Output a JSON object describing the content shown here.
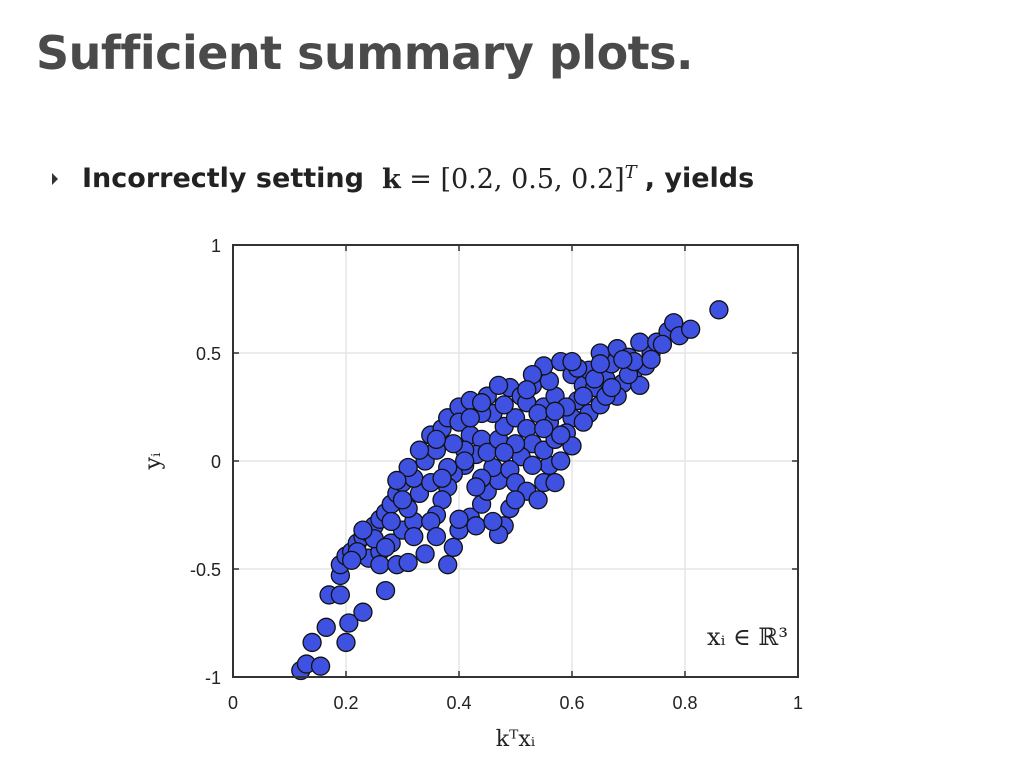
{
  "slide": {
    "title": "Sufficient summary plots.",
    "bullet": {
      "prefix": "Incorrectly setting",
      "math_bold": "k",
      "math_rest": " = [0.2, 0.5, 0.2]",
      "math_sup": "T",
      "suffix": ", yields"
    }
  },
  "colors": {
    "marker_fill": "#3f51e0",
    "marker_edge": "#111111",
    "grid": "#e6e6e6",
    "axes": "#333333"
  },
  "chart_data": {
    "type": "scatter",
    "xlabel": "kᵀxᵢ",
    "ylabel": "yᵢ",
    "annotation": "xᵢ ∈ ℝ³",
    "xlim": [
      0,
      1
    ],
    "ylim": [
      -1,
      1
    ],
    "xticks": [
      0,
      0.2,
      0.4,
      0.6,
      0.8,
      1
    ],
    "xtick_labels": [
      "0",
      "0.2",
      "0.4",
      "0.6",
      "0.8",
      "1"
    ],
    "yticks": [
      -1,
      -0.5,
      0,
      0.5,
      1
    ],
    "ytick_labels": [
      "-1",
      "-0.5",
      "0",
      "0.5",
      "1"
    ],
    "grid": true,
    "series": [
      {
        "points": [
          [
            0.12,
            -0.97
          ],
          [
            0.13,
            -0.94
          ],
          [
            0.14,
            -0.84
          ],
          [
            0.155,
            -0.95
          ],
          [
            0.165,
            -0.77
          ],
          [
            0.17,
            -0.62
          ],
          [
            0.19,
            -0.62
          ],
          [
            0.2,
            -0.84
          ],
          [
            0.205,
            -0.75
          ],
          [
            0.23,
            -0.7
          ],
          [
            0.19,
            -0.53
          ],
          [
            0.19,
            -0.48
          ],
          [
            0.2,
            -0.44
          ],
          [
            0.21,
            -0.42
          ],
          [
            0.22,
            -0.38
          ],
          [
            0.23,
            -0.35
          ],
          [
            0.24,
            -0.33
          ],
          [
            0.25,
            -0.3
          ],
          [
            0.26,
            -0.27
          ],
          [
            0.27,
            -0.24
          ],
          [
            0.28,
            -0.2
          ],
          [
            0.29,
            -0.15
          ],
          [
            0.3,
            -0.1
          ],
          [
            0.27,
            -0.6
          ],
          [
            0.24,
            -0.45
          ],
          [
            0.26,
            -0.42
          ],
          [
            0.28,
            -0.38
          ],
          [
            0.3,
            -0.32
          ],
          [
            0.32,
            -0.28
          ],
          [
            0.31,
            -0.22
          ],
          [
            0.33,
            -0.15
          ],
          [
            0.32,
            -0.08
          ],
          [
            0.31,
            -0.03
          ],
          [
            0.34,
            0.0
          ],
          [
            0.36,
            0.05
          ],
          [
            0.35,
            0.12
          ],
          [
            0.37,
            0.15
          ],
          [
            0.38,
            0.2
          ],
          [
            0.4,
            0.25
          ],
          [
            0.42,
            0.28
          ],
          [
            0.4,
            0.18
          ],
          [
            0.42,
            0.12
          ],
          [
            0.44,
            0.1
          ],
          [
            0.43,
            0.03
          ],
          [
            0.41,
            -0.02
          ],
          [
            0.39,
            -0.06
          ],
          [
            0.38,
            -0.12
          ],
          [
            0.37,
            -0.18
          ],
          [
            0.36,
            -0.25
          ],
          [
            0.35,
            -0.28
          ],
          [
            0.34,
            -0.43
          ],
          [
            0.38,
            -0.48
          ],
          [
            0.39,
            -0.4
          ],
          [
            0.4,
            -0.32
          ],
          [
            0.42,
            -0.26
          ],
          [
            0.44,
            -0.2
          ],
          [
            0.45,
            -0.14
          ],
          [
            0.47,
            -0.09
          ],
          [
            0.46,
            -0.03
          ],
          [
            0.45,
            0.04
          ],
          [
            0.47,
            0.1
          ],
          [
            0.48,
            0.16
          ],
          [
            0.46,
            0.22
          ],
          [
            0.45,
            0.3
          ],
          [
            0.49,
            0.34
          ],
          [
            0.51,
            0.3
          ],
          [
            0.53,
            0.35
          ],
          [
            0.52,
            0.27
          ],
          [
            0.5,
            0.2
          ],
          [
            0.52,
            0.15
          ],
          [
            0.53,
            0.08
          ],
          [
            0.51,
            0.02
          ],
          [
            0.49,
            -0.04
          ],
          [
            0.5,
            -0.1
          ],
          [
            0.52,
            -0.14
          ],
          [
            0.49,
            -0.22
          ],
          [
            0.48,
            -0.3
          ],
          [
            0.47,
            -0.34
          ],
          [
            0.54,
            -0.18
          ],
          [
            0.55,
            -0.1
          ],
          [
            0.56,
            -0.02
          ],
          [
            0.55,
            0.05
          ],
          [
            0.57,
            0.1
          ],
          [
            0.56,
            0.18
          ],
          [
            0.55,
            0.25
          ],
          [
            0.57,
            0.3
          ],
          [
            0.56,
            0.37
          ],
          [
            0.55,
            0.44
          ],
          [
            0.58,
            0.46
          ],
          [
            0.6,
            0.4
          ],
          [
            0.62,
            0.35
          ],
          [
            0.61,
            0.28
          ],
          [
            0.6,
            0.2
          ],
          [
            0.59,
            0.13
          ],
          [
            0.6,
            0.07
          ],
          [
            0.58,
            0.0
          ],
          [
            0.63,
            0.22
          ],
          [
            0.65,
            0.26
          ],
          [
            0.64,
            0.34
          ],
          [
            0.66,
            0.38
          ],
          [
            0.67,
            0.45
          ],
          [
            0.65,
            0.5
          ],
          [
            0.68,
            0.52
          ],
          [
            0.7,
            0.48
          ],
          [
            0.71,
            0.42
          ],
          [
            0.69,
            0.36
          ],
          [
            0.68,
            0.3
          ],
          [
            0.72,
            0.35
          ],
          [
            0.73,
            0.44
          ],
          [
            0.74,
            0.5
          ],
          [
            0.72,
            0.55
          ],
          [
            0.75,
            0.55
          ],
          [
            0.77,
            0.6
          ],
          [
            0.78,
            0.64
          ],
          [
            0.79,
            0.58
          ],
          [
            0.81,
            0.61
          ],
          [
            0.86,
            0.7
          ],
          [
            0.76,
            0.54
          ],
          [
            0.7,
            0.4
          ],
          [
            0.66,
            0.3
          ],
          [
            0.62,
            0.18
          ],
          [
            0.58,
            0.12
          ],
          [
            0.54,
            0.22
          ],
          [
            0.5,
            0.08
          ],
          [
            0.44,
            0.22
          ],
          [
            0.41,
            0.05
          ],
          [
            0.39,
            0.08
          ],
          [
            0.33,
            0.05
          ],
          [
            0.3,
            -0.18
          ],
          [
            0.28,
            -0.28
          ],
          [
            0.25,
            -0.36
          ],
          [
            0.22,
            -0.42
          ],
          [
            0.26,
            -0.48
          ],
          [
            0.29,
            -0.48
          ],
          [
            0.31,
            -0.47
          ],
          [
            0.36,
            -0.35
          ],
          [
            0.4,
            -0.27
          ],
          [
            0.43,
            -0.3
          ],
          [
            0.44,
            -0.08
          ],
          [
            0.43,
            -0.12
          ],
          [
            0.48,
            0.04
          ],
          [
            0.53,
            -0.02
          ],
          [
            0.57,
            -0.1
          ],
          [
            0.59,
            0.25
          ],
          [
            0.63,
            0.42
          ],
          [
            0.61,
            0.43
          ],
          [
            0.64,
            0.38
          ],
          [
            0.67,
            0.34
          ],
          [
            0.71,
            0.46
          ],
          [
            0.74,
            0.47
          ],
          [
            0.6,
            0.46
          ],
          [
            0.53,
            0.4
          ],
          [
            0.47,
            0.35
          ],
          [
            0.42,
            0.2
          ],
          [
            0.38,
            -0.03
          ],
          [
            0.35,
            -0.1
          ],
          [
            0.32,
            -0.35
          ],
          [
            0.27,
            -0.4
          ],
          [
            0.23,
            -0.32
          ],
          [
            0.21,
            -0.46
          ],
          [
            0.46,
            -0.28
          ],
          [
            0.5,
            -0.18
          ],
          [
            0.55,
            0.15
          ],
          [
            0.57,
            0.23
          ],
          [
            0.62,
            0.3
          ],
          [
            0.65,
            0.45
          ],
          [
            0.69,
            0.47
          ],
          [
            0.52,
            0.33
          ],
          [
            0.48,
            0.26
          ],
          [
            0.44,
            0.27
          ],
          [
            0.41,
            0.0
          ],
          [
            0.37,
            -0.08
          ],
          [
            0.36,
            0.1
          ],
          [
            0.29,
            -0.09
          ]
        ]
      }
    ]
  }
}
